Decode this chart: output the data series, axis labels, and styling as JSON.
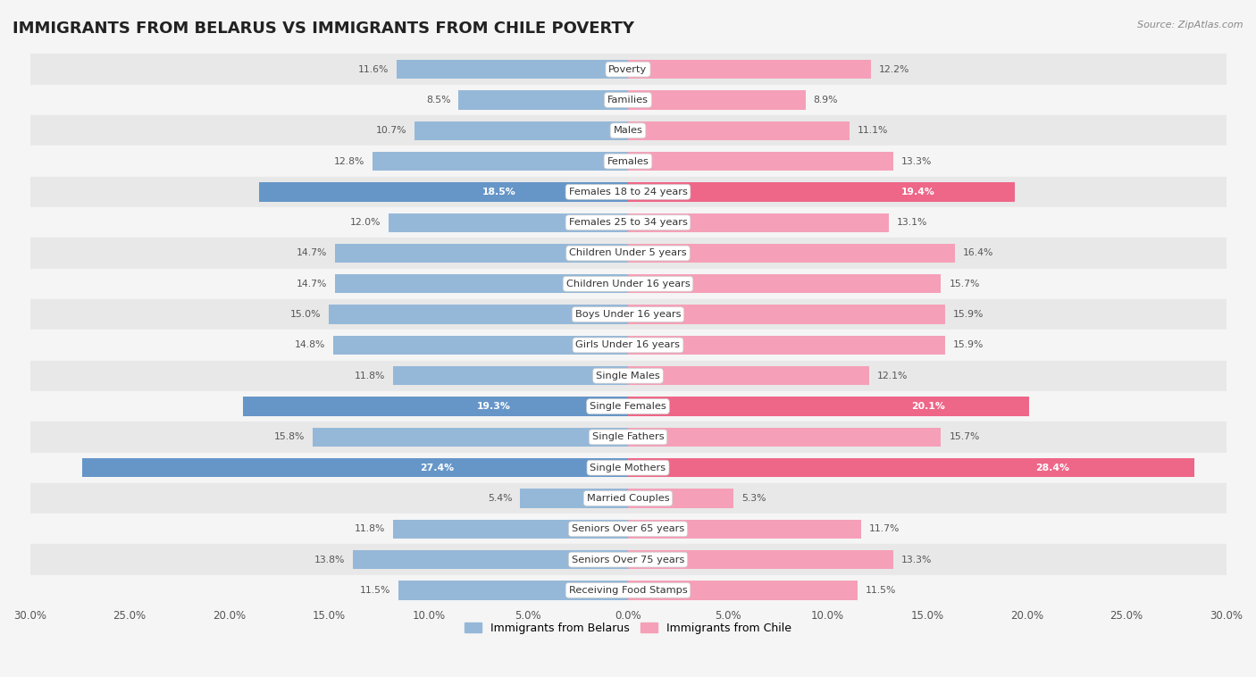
{
  "title": "IMMIGRANTS FROM BELARUS VS IMMIGRANTS FROM CHILE POVERTY",
  "source": "Source: ZipAtlas.com",
  "categories": [
    "Poverty",
    "Families",
    "Males",
    "Females",
    "Females 18 to 24 years",
    "Females 25 to 34 years",
    "Children Under 5 years",
    "Children Under 16 years",
    "Boys Under 16 years",
    "Girls Under 16 years",
    "Single Males",
    "Single Females",
    "Single Fathers",
    "Single Mothers",
    "Married Couples",
    "Seniors Over 65 years",
    "Seniors Over 75 years",
    "Receiving Food Stamps"
  ],
  "belarus_values": [
    11.6,
    8.5,
    10.7,
    12.8,
    18.5,
    12.0,
    14.7,
    14.7,
    15.0,
    14.8,
    11.8,
    19.3,
    15.8,
    27.4,
    5.4,
    11.8,
    13.8,
    11.5
  ],
  "chile_values": [
    12.2,
    8.9,
    11.1,
    13.3,
    19.4,
    13.1,
    16.4,
    15.7,
    15.9,
    15.9,
    12.1,
    20.1,
    15.7,
    28.4,
    5.3,
    11.7,
    13.3,
    11.5
  ],
  "belarus_color": "#95b8d8",
  "chile_color": "#f5a0b8",
  "belarus_highlight_color": "#6696c8",
  "chile_highlight_color": "#ee6688",
  "highlight_rows": [
    4,
    11,
    13
  ],
  "xlim": 30.0,
  "bar_height": 0.62,
  "background_color": "#f5f5f5",
  "row_color_even": "#f5f5f5",
  "row_color_odd": "#e8e8e8",
  "legend_belarus": "Immigrants from Belarus",
  "legend_chile": "Immigrants from Chile",
  "title_fontsize": 13,
  "label_fontsize": 8.2,
  "value_fontsize": 7.8,
  "axis_tick_fontsize": 8.5
}
